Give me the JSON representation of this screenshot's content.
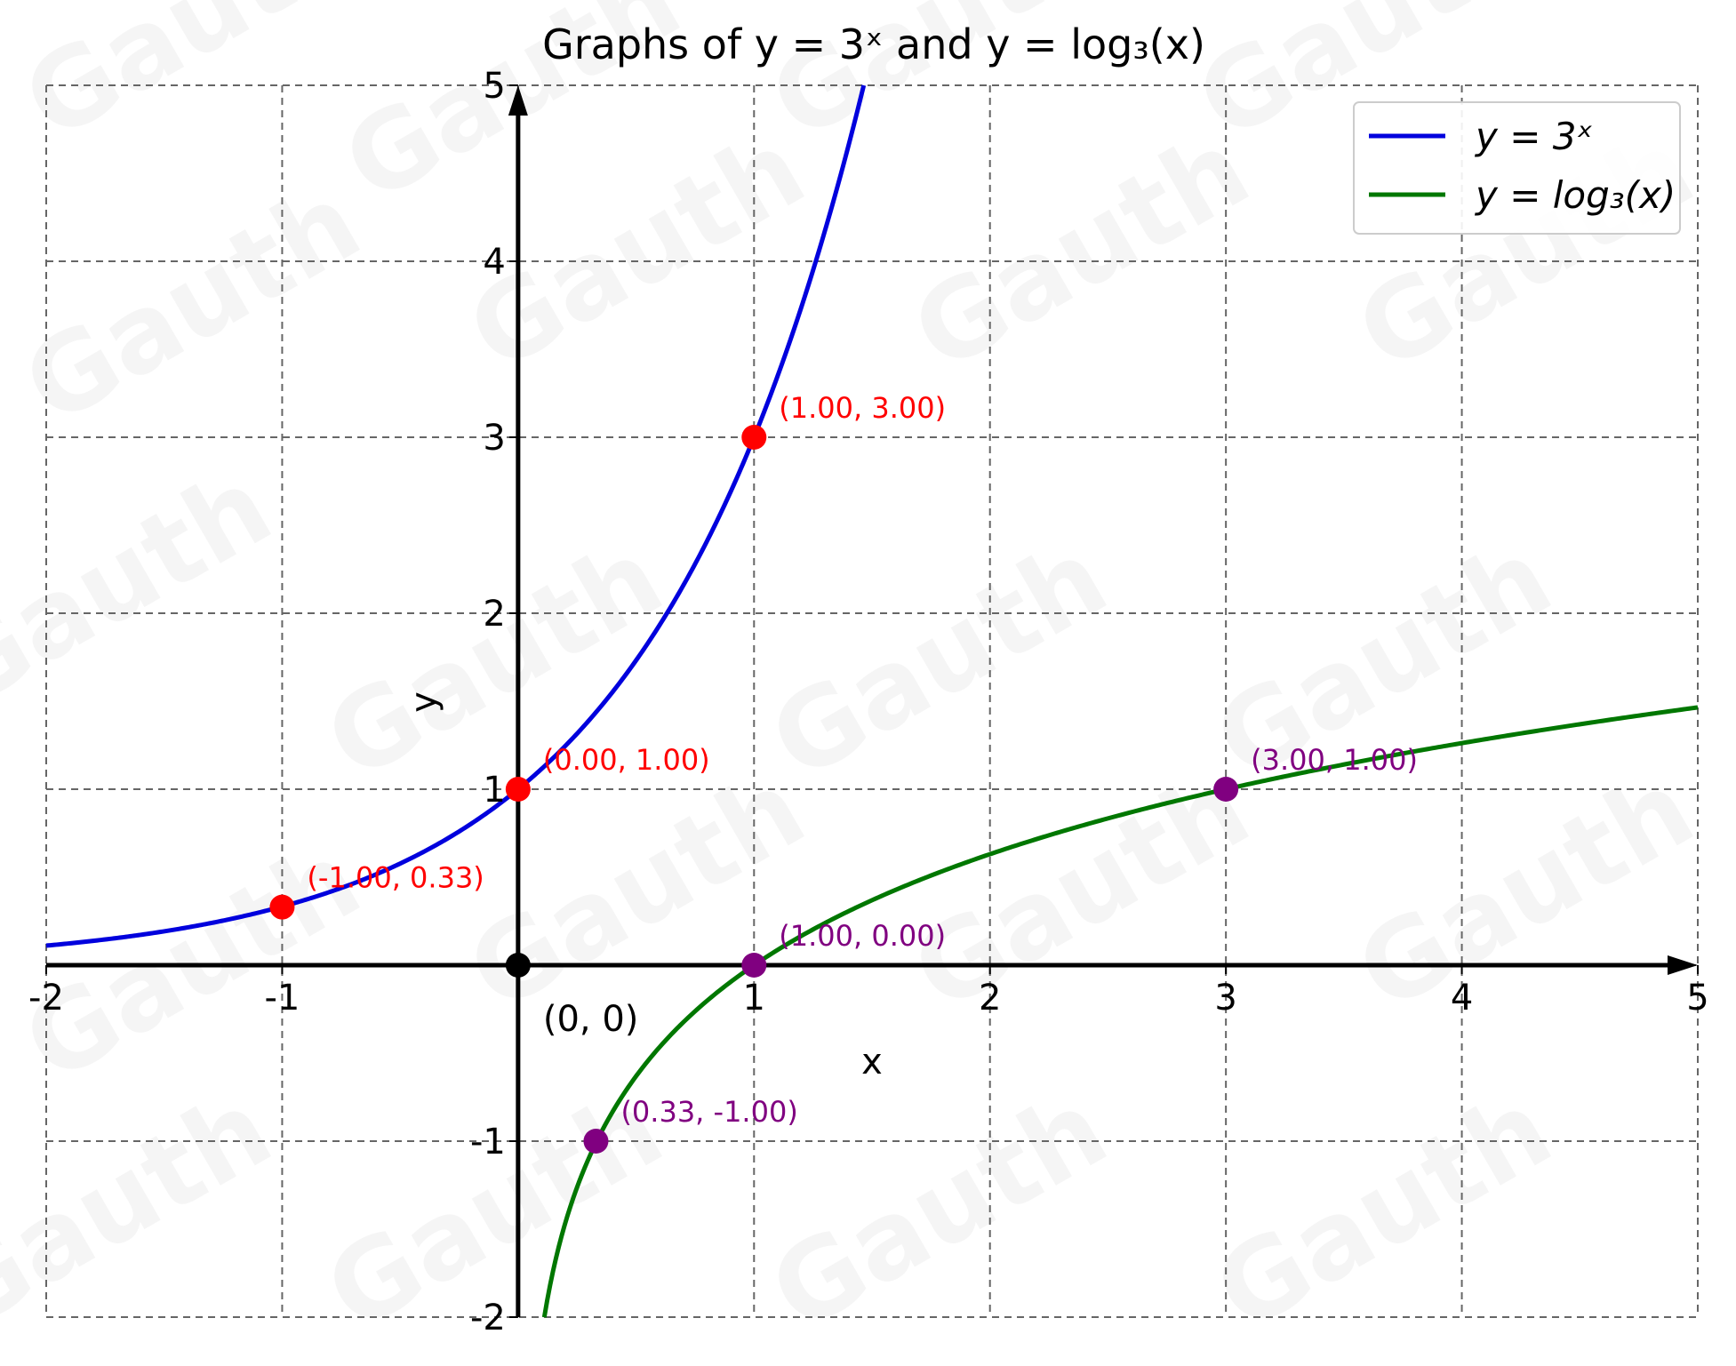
{
  "chart_data": {
    "type": "line",
    "title": "Graphs of y = 3ˣ and y = log₃(x)",
    "xlabel": "x",
    "ylabel": "y",
    "xlim": [
      -2,
      5
    ],
    "ylim": [
      -2,
      5
    ],
    "grid": true,
    "grid_style": "dashed",
    "x_ticks": [
      -2,
      -1,
      1,
      2,
      3,
      4,
      5
    ],
    "y_ticks": [
      -2,
      -1,
      1,
      2,
      3,
      4,
      5
    ],
    "x_tick_labels": [
      "-2",
      "-1",
      "1",
      "2",
      "3",
      "4",
      "5"
    ],
    "y_tick_labels": [
      "-2",
      "-1",
      "1",
      "2",
      "3",
      "4",
      "5"
    ],
    "legend_position": "top-right",
    "series": [
      {
        "name": "y = 3ˣ",
        "function": "3^x",
        "color": "#0000dd",
        "x_range": [
          -2,
          1.465
        ],
        "points": [
          {
            "x": -1,
            "y": 0.33,
            "label": "(-1.00, 0.33)"
          },
          {
            "x": 0,
            "y": 1,
            "label": "(0.00, 1.00)"
          },
          {
            "x": 1,
            "y": 3,
            "label": "(1.00, 3.00)"
          }
        ],
        "point_color": "#ff0000"
      },
      {
        "name": "y = log₃(x)",
        "function": "log3(x)",
        "color": "#007700",
        "x_range": [
          0.111,
          5
        ],
        "points": [
          {
            "x": 0.33,
            "y": -1,
            "label": "(0.33, -1.00)"
          },
          {
            "x": 1,
            "y": 0,
            "label": "(1.00, 0.00)"
          },
          {
            "x": 3,
            "y": 1,
            "label": "(3.00, 1.00)"
          }
        ],
        "point_color": "#800080"
      }
    ],
    "origin_point": {
      "x": 0,
      "y": 0,
      "label": "(0, 0)"
    },
    "watermark": "Gauth"
  }
}
